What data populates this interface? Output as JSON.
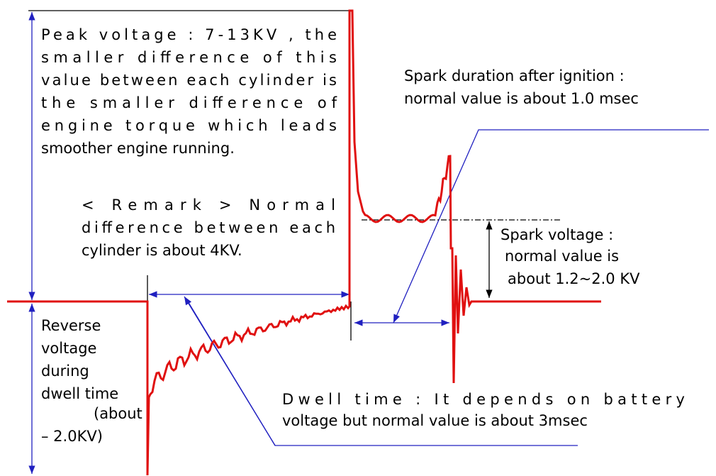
{
  "peak": [
    "Peak voltage : 7-13KV , the",
    "smaller difference of this",
    "value between each cylinder is",
    "the smaller difference of",
    "engine torque which leads",
    "smoother engine running."
  ],
  "remark": [
    "< Remark > Normal",
    "difference between each",
    "cylinder is about 4KV."
  ],
  "spark_duration": [
    "Spark duration after ignition :",
    "normal value is about 1.0 msec"
  ],
  "spark_voltage": [
    "Spark voltage :",
    "normal value is",
    "about 1.2~2.0 KV"
  ],
  "reverse": [
    "Reverse",
    "voltage",
    "during",
    "dwell time",
    "(about",
    "– 2.0KV)"
  ],
  "dwell": [
    "Dwell time : It depends on battery",
    "voltage but normal value is about 3msec"
  ]
}
